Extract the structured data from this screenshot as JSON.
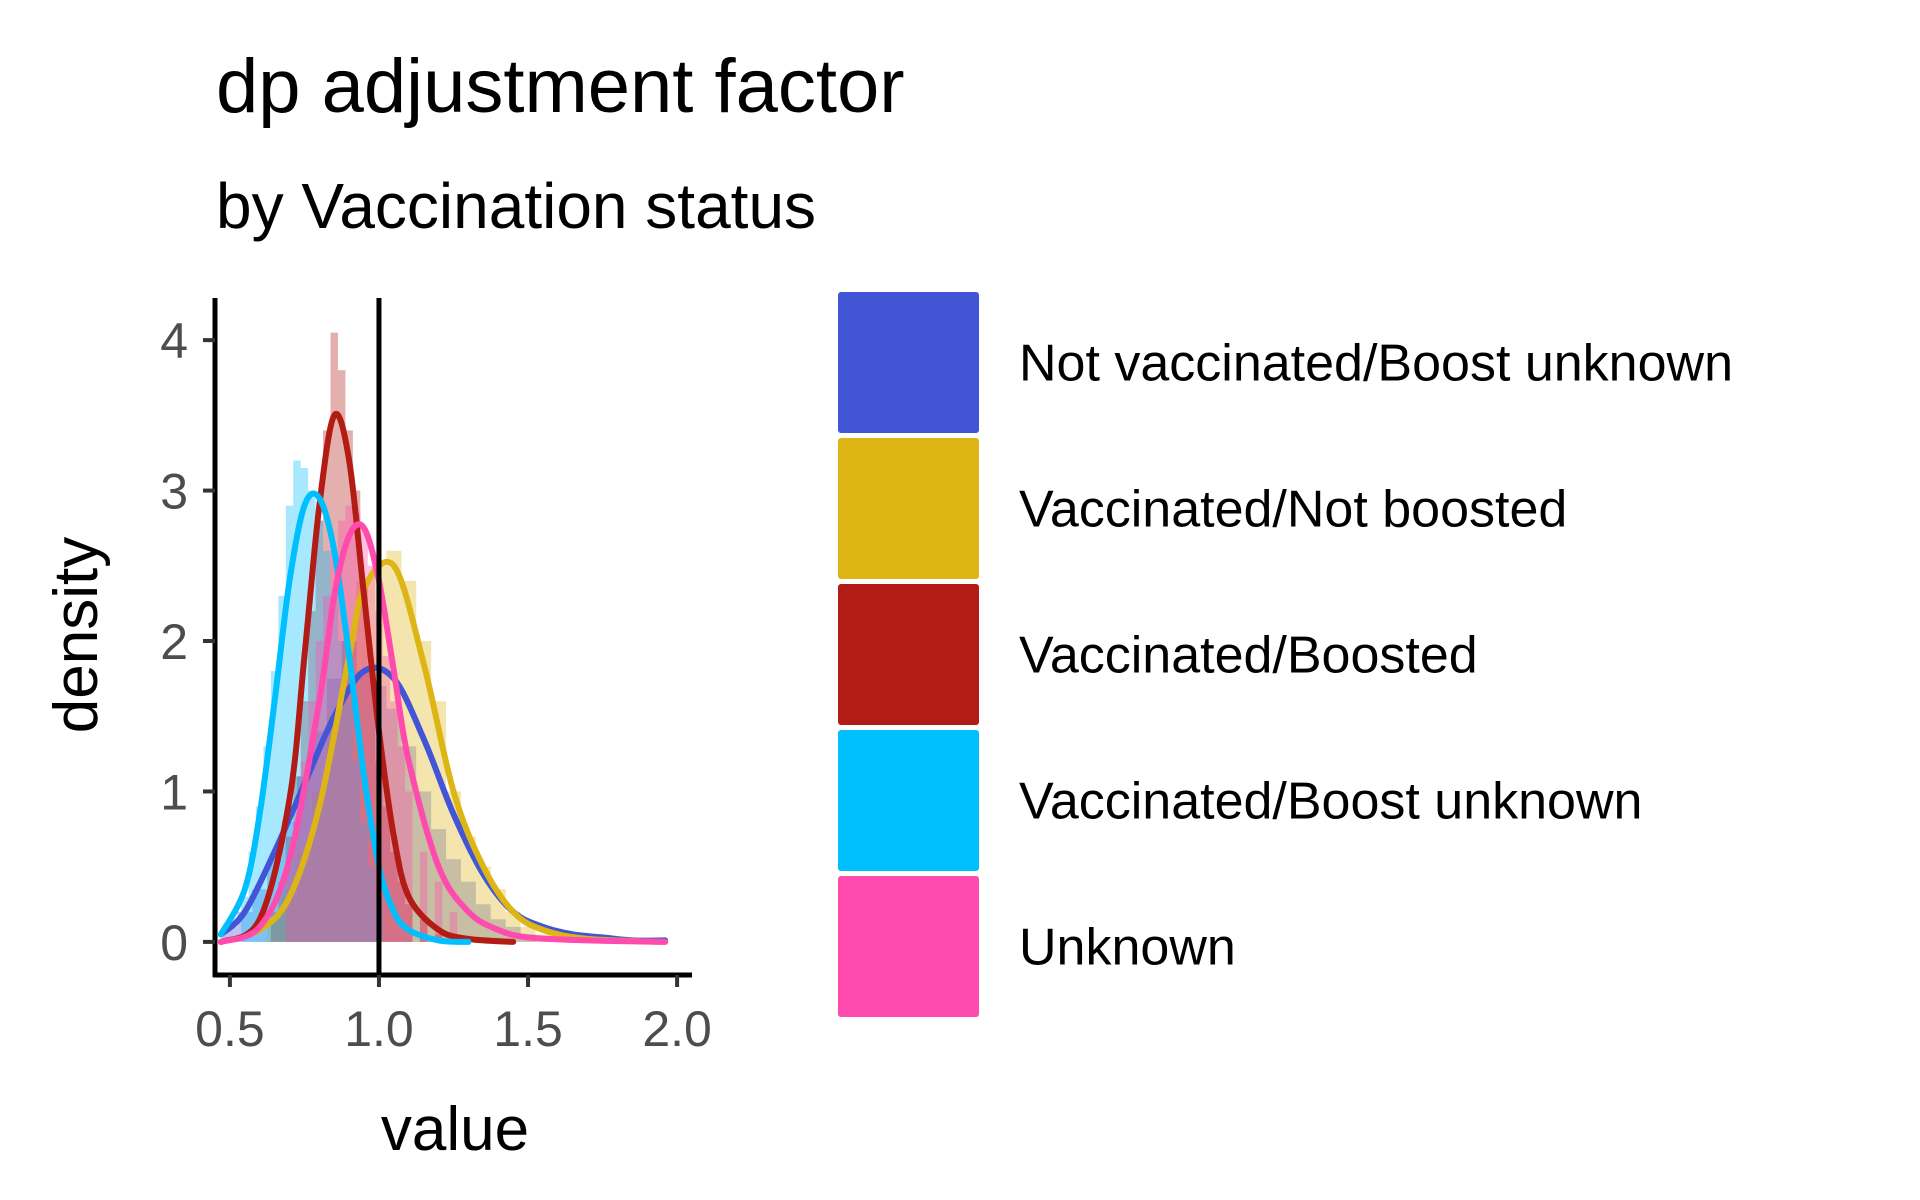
{
  "chart_data": {
    "type": "area",
    "title": "dp adjustment factor",
    "subtitle": "by Vaccination status",
    "xlabel": "value",
    "ylabel": "density",
    "xlim": [
      0.45,
      2.05
    ],
    "ylim": [
      -0.22,
      4.28
    ],
    "x_ticks": [
      {
        "value": 0.5,
        "label": "0.5"
      },
      {
        "value": 1.0,
        "label": "1.0"
      },
      {
        "value": 1.5,
        "label": "1.5"
      },
      {
        "value": 2.0,
        "label": "2.0"
      }
    ],
    "y_ticks": [
      {
        "value": 0,
        "label": "0"
      },
      {
        "value": 1,
        "label": "1"
      },
      {
        "value": 2,
        "label": "2"
      },
      {
        "value": 3,
        "label": "3"
      },
      {
        "value": 4,
        "label": "4"
      }
    ],
    "reference_line_x": 1.0,
    "grid": false,
    "legend_position": "right",
    "series": [
      {
        "name": "Not vaccinated/Boost unknown",
        "color": "#4155D6",
        "density": {
          "x": [
            0.47,
            0.55,
            0.65,
            0.75,
            0.85,
            0.95,
            1.05,
            1.15,
            1.25,
            1.35,
            1.45,
            1.55,
            1.65,
            1.75,
            1.85,
            1.96
          ],
          "y": [
            0.05,
            0.2,
            0.6,
            1.05,
            1.5,
            1.8,
            1.75,
            1.35,
            0.85,
            0.45,
            0.2,
            0.1,
            0.05,
            0.03,
            0.01,
            0.01
          ]
        },
        "histogram": {
          "bin_width": 0.05,
          "x": [
            0.5,
            0.55,
            0.6,
            0.65,
            0.7,
            0.75,
            0.8,
            0.85,
            0.9,
            0.95,
            1.0,
            1.05,
            1.1,
            1.15,
            1.2,
            1.25,
            1.3,
            1.35,
            1.4,
            1.45,
            1.5
          ],
          "y": [
            0.1,
            0.2,
            0.35,
            0.55,
            0.8,
            1.1,
            1.4,
            1.75,
            2.0,
            1.8,
            1.7,
            1.55,
            1.3,
            1.0,
            0.75,
            0.55,
            0.4,
            0.25,
            0.15,
            0.1,
            0.05
          ]
        }
      },
      {
        "name": "Vaccinated/Not boosted",
        "color": "#DDB514",
        "density": {
          "x": [
            0.47,
            0.6,
            0.7,
            0.8,
            0.9,
            0.95,
            1.05,
            1.15,
            1.25,
            1.35,
            1.45,
            1.55,
            1.7,
            1.96
          ],
          "y": [
            0.0,
            0.08,
            0.3,
            0.9,
            1.9,
            2.35,
            2.5,
            1.85,
            1.0,
            0.5,
            0.2,
            0.08,
            0.02,
            0.0
          ]
        },
        "histogram": {
          "bin_width": 0.05,
          "x": [
            0.65,
            0.7,
            0.75,
            0.8,
            0.85,
            0.9,
            0.95,
            1.0,
            1.05,
            1.1,
            1.15,
            1.2,
            1.25,
            1.3,
            1.35,
            1.4,
            1.45,
            1.5,
            1.55
          ],
          "y": [
            0.15,
            0.3,
            0.6,
            1.0,
            1.5,
            2.0,
            2.4,
            2.5,
            2.6,
            2.4,
            2.0,
            1.6,
            1.0,
            0.7,
            0.5,
            0.35,
            0.2,
            0.1,
            0.05
          ]
        }
      },
      {
        "name": "Vaccinated/Boosted",
        "color": "#B31C14",
        "density": {
          "x": [
            0.47,
            0.6,
            0.7,
            0.75,
            0.8,
            0.85,
            0.9,
            0.95,
            1.0,
            1.05,
            1.1,
            1.2,
            1.3,
            1.45
          ],
          "y": [
            0.0,
            0.15,
            0.95,
            1.9,
            2.9,
            3.5,
            3.2,
            2.3,
            1.4,
            0.7,
            0.3,
            0.08,
            0.02,
            0.0
          ]
        },
        "histogram": {
          "bin_width": 0.025,
          "x": [
            0.65,
            0.675,
            0.7,
            0.725,
            0.75,
            0.775,
            0.8,
            0.825,
            0.85,
            0.875,
            0.9,
            0.925,
            0.95,
            0.975,
            1.0,
            1.025,
            1.05,
            1.075,
            1.1,
            1.15,
            1.2
          ],
          "y": [
            0.2,
            0.4,
            0.7,
            1.1,
            1.6,
            2.2,
            2.8,
            3.4,
            4.05,
            3.8,
            3.4,
            3.0,
            2.4,
            1.8,
            1.2,
            0.9,
            0.6,
            0.4,
            0.25,
            0.15,
            0.05
          ]
        }
      },
      {
        "name": "Vaccinated/Boost unknown",
        "color": "#00BFFF",
        "density": {
          "x": [
            0.47,
            0.55,
            0.6,
            0.65,
            0.7,
            0.75,
            0.8,
            0.85,
            0.9,
            0.95,
            1.0,
            1.05,
            1.1,
            1.2,
            1.3
          ],
          "y": [
            0.05,
            0.35,
            0.85,
            1.6,
            2.4,
            2.9,
            2.95,
            2.6,
            1.9,
            1.1,
            0.5,
            0.2,
            0.08,
            0.01,
            0.0
          ]
        },
        "histogram": {
          "bin_width": 0.025,
          "x": [
            0.55,
            0.575,
            0.6,
            0.625,
            0.65,
            0.675,
            0.7,
            0.725,
            0.75,
            0.775,
            0.8,
            0.825,
            0.85,
            0.875,
            0.9,
            0.925,
            0.95,
            0.975,
            1.0
          ],
          "y": [
            0.3,
            0.6,
            0.9,
            1.3,
            1.8,
            2.3,
            2.9,
            3.2,
            3.15,
            3.0,
            2.8,
            2.6,
            2.3,
            2.0,
            1.6,
            1.2,
            0.8,
            0.5,
            0.3
          ]
        }
      },
      {
        "name": "Unknown",
        "color": "#FF4AAE",
        "density": {
          "x": [
            0.47,
            0.6,
            0.7,
            0.8,
            0.85,
            0.9,
            0.95,
            1.0,
            1.05,
            1.1,
            1.2,
            1.3,
            1.4,
            1.5,
            1.7,
            1.96
          ],
          "y": [
            0.0,
            0.1,
            0.55,
            1.6,
            2.3,
            2.7,
            2.75,
            2.4,
            1.8,
            1.2,
            0.5,
            0.2,
            0.08,
            0.03,
            0.01,
            0.0
          ]
        },
        "histogram": {
          "bin_width": 0.025,
          "x": [
            0.7,
            0.725,
            0.75,
            0.775,
            0.8,
            0.825,
            0.85,
            0.875,
            0.9,
            0.925,
            0.95,
            0.975,
            1.0,
            1.025,
            1.05,
            1.075,
            1.1,
            1.15,
            1.2,
            1.25
          ],
          "y": [
            0.5,
            0.8,
            1.2,
            1.6,
            2.0,
            2.3,
            2.6,
            2.8,
            2.9,
            2.85,
            2.75,
            2.5,
            2.2,
            1.9,
            1.6,
            1.3,
            1.0,
            0.6,
            0.4,
            0.2
          ]
        }
      }
    ]
  }
}
